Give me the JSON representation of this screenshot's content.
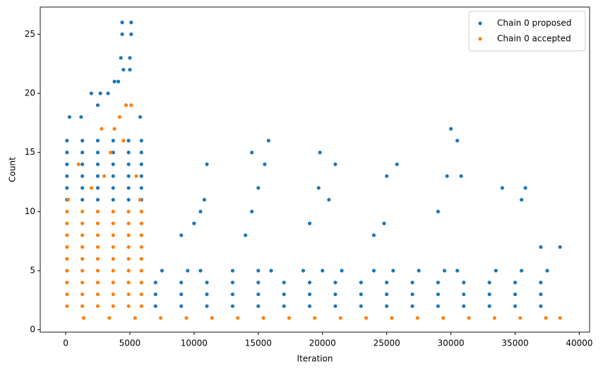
{
  "chart_data": {
    "type": "scatter",
    "x_label": "Iteration",
    "y_label": "Count",
    "xlim": [
      -1980,
      40800
    ],
    "ylim": [
      -0.2,
      27.3
    ],
    "xticks": [
      0,
      5000,
      10000,
      15000,
      20000,
      25000,
      30000,
      35000,
      40000
    ],
    "yticks": [
      0,
      5,
      10,
      15,
      20,
      25
    ],
    "legend": "upper right",
    "series": [
      {
        "name": "Chain 0 proposed",
        "color": "#1f77b4",
        "x": [
          100,
          1300,
          2500,
          3700,
          4900,
          5900,
          100,
          1300,
          2500,
          3700,
          4900,
          5900,
          100,
          1300,
          2500,
          3700,
          4900,
          5900,
          100,
          1300,
          2500,
          3700,
          4900,
          5900,
          100,
          1300,
          2500,
          3700,
          4900,
          5900,
          100,
          1300,
          2500,
          3700,
          4900,
          5900,
          4400,
          5100,
          4400,
          5100,
          4300,
          5000,
          4500,
          5000,
          3800,
          4100,
          2000,
          2700,
          3300,
          2500,
          4700,
          300,
          1200,
          5800,
          7000,
          9000,
          11000,
          13000,
          15000,
          17000,
          19000,
          21000,
          23000,
          25000,
          27000,
          29000,
          31000,
          33000,
          35000,
          37000,
          7000,
          9000,
          11000,
          13000,
          15000,
          17000,
          19000,
          21000,
          23000,
          25000,
          27000,
          29000,
          31000,
          33000,
          35000,
          37000,
          7000,
          9000,
          11000,
          13000,
          15000,
          17000,
          19000,
          21000,
          23000,
          25000,
          27000,
          29000,
          31000,
          33000,
          35000,
          37000,
          7500,
          9500,
          10500,
          13000,
          15000,
          16000,
          18500,
          20000,
          21500,
          24000,
          25500,
          27500,
          29500,
          30500,
          33500,
          35500,
          37500,
          9000,
          10000,
          10500,
          10800,
          11000,
          14000,
          14500,
          15000,
          14500,
          15800,
          15500,
          19000,
          19700,
          19800,
          20500,
          21000,
          24000,
          24800,
          25000,
          25800,
          29000,
          29700,
          30000,
          30500,
          30800,
          34000,
          35500,
          35800,
          37000,
          38500
        ],
        "values": [
          11,
          11,
          11,
          11,
          11,
          11,
          12,
          12,
          12,
          12,
          12,
          12,
          13,
          13,
          13,
          13,
          13,
          13,
          14,
          14,
          14,
          14,
          14,
          14,
          15,
          15,
          15,
          15,
          15,
          15,
          16,
          16,
          16,
          16,
          16,
          16,
          26,
          26,
          25,
          25,
          23,
          23,
          22,
          22,
          21,
          21,
          20,
          20,
          20,
          19,
          19,
          18,
          18,
          18,
          2,
          2,
          2,
          2,
          2,
          2,
          2,
          2,
          2,
          2,
          2,
          2,
          2,
          2,
          2,
          2,
          3,
          3,
          3,
          3,
          3,
          3,
          3,
          3,
          3,
          3,
          3,
          3,
          3,
          3,
          3,
          3,
          4,
          4,
          4,
          4,
          4,
          4,
          4,
          4,
          4,
          4,
          4,
          4,
          4,
          4,
          4,
          4,
          5,
          5,
          5,
          5,
          5,
          5,
          5,
          5,
          5,
          5,
          5,
          5,
          5,
          5,
          5,
          5,
          5,
          8,
          9,
          10,
          11,
          14,
          8,
          10,
          12,
          15,
          16,
          14,
          9,
          12,
          15,
          11,
          14,
          8,
          9,
          13,
          14,
          10,
          13,
          17,
          16,
          13,
          12,
          11,
          12,
          7,
          7
        ]
      },
      {
        "name": "Chain 0 accepted",
        "color": "#ff7f0e",
        "x": [
          1400,
          3400,
          5400,
          7400,
          9400,
          11400,
          13400,
          15400,
          17400,
          19400,
          21400,
          23400,
          25400,
          27400,
          29400,
          31400,
          33400,
          35400,
          37400,
          38500,
          100,
          1300,
          2500,
          3700,
          4900,
          5900,
          100,
          1300,
          2500,
          3700,
          4900,
          5900,
          100,
          1300,
          2500,
          3700,
          4900,
          5900,
          100,
          1300,
          2500,
          3700,
          4900,
          5900,
          100,
          1300,
          2500,
          3700,
          4900,
          5900,
          100,
          1300,
          2500,
          3700,
          4900,
          5900,
          100,
          1300,
          2500,
          3700,
          4900,
          5900,
          100,
          1300,
          2500,
          3700,
          4900,
          5900,
          100,
          1300,
          2500,
          3700,
          4900,
          5900,
          2800,
          3800,
          4700,
          5100,
          4200,
          3500,
          1000,
          5500,
          2000,
          3000,
          4500,
          200,
          5800
        ],
        "values": [
          1,
          1,
          1,
          1,
          1,
          1,
          1,
          1,
          1,
          1,
          1,
          1,
          1,
          1,
          1,
          1,
          1,
          1,
          1,
          1,
          2,
          2,
          2,
          2,
          2,
          2,
          3,
          3,
          3,
          3,
          3,
          3,
          4,
          4,
          4,
          4,
          4,
          4,
          5,
          5,
          5,
          5,
          5,
          5,
          6,
          6,
          6,
          6,
          6,
          6,
          7,
          7,
          7,
          7,
          7,
          7,
          8,
          8,
          8,
          8,
          8,
          8,
          9,
          9,
          9,
          9,
          9,
          9,
          10,
          10,
          10,
          10,
          10,
          10,
          17,
          17,
          19,
          19,
          18,
          15,
          14,
          13,
          12,
          13,
          16,
          11,
          11
        ]
      }
    ]
  }
}
